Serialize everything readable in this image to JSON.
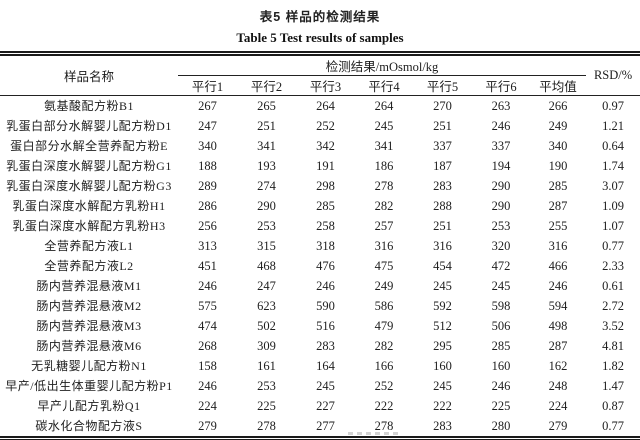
{
  "page": {
    "title_zh": "表5  样品的检测结果",
    "title_en": "Table 5 Test results of samples"
  },
  "table": {
    "unit_note": "mOsmol/kg",
    "header": {
      "sample_col": "样品名称",
      "group_col": "检测结果/mOsmol/kg",
      "rsd_col": "RSD/%",
      "sub_cols": [
        "平行1",
        "平行2",
        "平行3",
        "平行4",
        "平行5",
        "平行6",
        "平均值"
      ]
    },
    "rows": [
      {
        "name": "氨基酸配方粉B1",
        "values": [
          "267",
          "265",
          "264",
          "264",
          "270",
          "263"
        ],
        "avg": "266",
        "rsd": "0.97"
      },
      {
        "name": "乳蛋白部分水解婴儿配方粉D1",
        "values": [
          "247",
          "251",
          "252",
          "245",
          "251",
          "246"
        ],
        "avg": "249",
        "rsd": "1.21"
      },
      {
        "name": "蛋白部分水解全营养配方粉E",
        "values": [
          "340",
          "341",
          "342",
          "341",
          "337",
          "337"
        ],
        "avg": "340",
        "rsd": "0.64"
      },
      {
        "name": "乳蛋白深度水解婴儿配方粉G1",
        "values": [
          "188",
          "193",
          "191",
          "186",
          "187",
          "194"
        ],
        "avg": "190",
        "rsd": "1.74"
      },
      {
        "name": "乳蛋白深度水解婴儿配方粉G3",
        "values": [
          "289",
          "274",
          "298",
          "278",
          "283",
          "290"
        ],
        "avg": "285",
        "rsd": "3.07"
      },
      {
        "name": "乳蛋白深度水解配方乳粉H1",
        "values": [
          "286",
          "290",
          "285",
          "282",
          "288",
          "290"
        ],
        "avg": "287",
        "rsd": "1.09"
      },
      {
        "name": "乳蛋白深度水解配方乳粉H3",
        "values": [
          "256",
          "253",
          "258",
          "257",
          "251",
          "253"
        ],
        "avg": "255",
        "rsd": "1.07"
      },
      {
        "name": "全营养配方液L1",
        "values": [
          "313",
          "315",
          "318",
          "316",
          "316",
          "320"
        ],
        "avg": "316",
        "rsd": "0.77"
      },
      {
        "name": "全营养配方液L2",
        "values": [
          "451",
          "468",
          "476",
          "475",
          "454",
          "472"
        ],
        "avg": "466",
        "rsd": "2.33"
      },
      {
        "name": "肠内营养混悬液M1",
        "values": [
          "246",
          "247",
          "246",
          "249",
          "245",
          "245"
        ],
        "avg": "246",
        "rsd": "0.61"
      },
      {
        "name": "肠内营养混悬液M2",
        "values": [
          "575",
          "623",
          "590",
          "586",
          "592",
          "598"
        ],
        "avg": "594",
        "rsd": "2.72"
      },
      {
        "name": "肠内营养混悬液M3",
        "values": [
          "474",
          "502",
          "516",
          "479",
          "512",
          "506"
        ],
        "avg": "498",
        "rsd": "3.52"
      },
      {
        "name": "肠内营养混悬液M6",
        "values": [
          "268",
          "309",
          "283",
          "282",
          "295",
          "285"
        ],
        "avg": "287",
        "rsd": "4.81"
      },
      {
        "name": "无乳糖婴儿配方粉N1",
        "values": [
          "158",
          "161",
          "164",
          "166",
          "160",
          "160"
        ],
        "avg": "162",
        "rsd": "1.82"
      },
      {
        "name": "早产/低出生体重婴儿配方粉P1",
        "values": [
          "246",
          "253",
          "245",
          "252",
          "245",
          "246"
        ],
        "avg": "248",
        "rsd": "1.47"
      },
      {
        "name": "早产儿配方乳粉Q1",
        "values": [
          "224",
          "225",
          "227",
          "222",
          "222",
          "225"
        ],
        "avg": "224",
        "rsd": "0.87"
      },
      {
        "name": "碳水化合物配方液S",
        "values": [
          "279",
          "278",
          "277",
          "278",
          "283",
          "280"
        ],
        "avg": "279",
        "rsd": "0.77"
      }
    ]
  }
}
